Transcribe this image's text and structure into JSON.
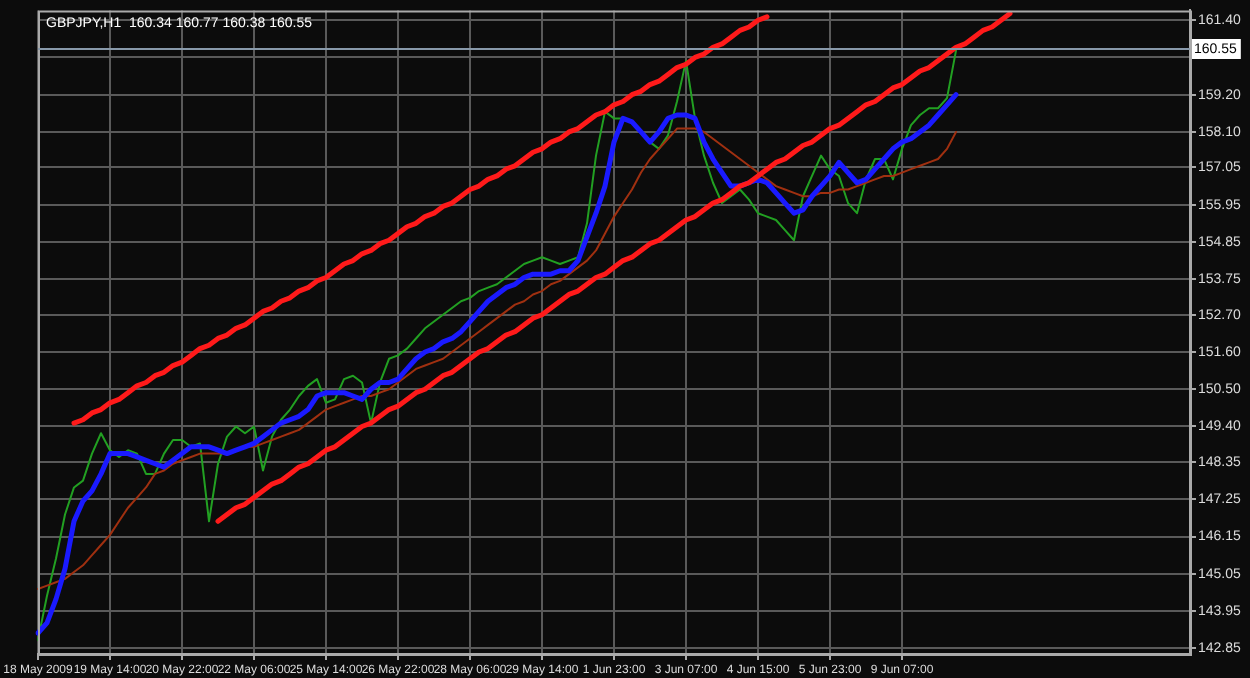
{
  "chart_data": {
    "type": "line",
    "title": "GBPJPY,H1  160.34 160.77 160.38 160.55",
    "categories": [
      "18 May 2009",
      null,
      null,
      null,
      null,
      null,
      null,
      null,
      "19 May 14:00",
      null,
      null,
      null,
      null,
      null,
      null,
      null,
      "20 May 22:00",
      null,
      null,
      null,
      null,
      null,
      null,
      null,
      "22 May 06:00",
      null,
      null,
      null,
      null,
      null,
      null,
      null,
      "25 May 14:00",
      null,
      null,
      null,
      null,
      null,
      null,
      null,
      "26 May 22:00",
      null,
      null,
      null,
      null,
      null,
      null,
      null,
      "28 May 06:00",
      null,
      null,
      null,
      null,
      null,
      null,
      null,
      "29 May 14:00",
      null,
      null,
      null,
      null,
      null,
      null,
      null,
      "1 Jun 23:00",
      null,
      null,
      null,
      null,
      null,
      null,
      null,
      "3 Jun 07:00",
      null,
      null,
      null,
      null,
      null,
      null,
      null,
      "4 Jun 15:00",
      null,
      null,
      null,
      null,
      null,
      null,
      null,
      "5 Jun 23:00",
      null,
      null,
      null,
      null,
      null,
      null,
      null,
      "9 Jun 07:00",
      null,
      null,
      null,
      null,
      null,
      null,
      null,
      null,
      null,
      null,
      null,
      null,
      null,
      null,
      null,
      null,
      null,
      null,
      null,
      null,
      null,
      null,
      null,
      null,
      null,
      null,
      null,
      null,
      null,
      null,
      null,
      null
    ],
    "ylim": [
      142.68,
      161.69
    ],
    "yticks": [
      {
        "value": 142.85,
        "label": "142.85"
      },
      {
        "value": 143.95,
        "label": "143.95"
      },
      {
        "value": 145.05,
        "label": "145.05"
      },
      {
        "value": 146.15,
        "label": "146.15"
      },
      {
        "value": 147.25,
        "label": "147.25"
      },
      {
        "value": 148.35,
        "label": "148.35"
      },
      {
        "value": 149.4,
        "label": "149.40"
      },
      {
        "value": 150.5,
        "label": "150.50"
      },
      {
        "value": 151.6,
        "label": "151.60"
      },
      {
        "value": 152.7,
        "label": "152.70"
      },
      {
        "value": 153.75,
        "label": "153.75"
      },
      {
        "value": 154.85,
        "label": "154.85"
      },
      {
        "value": 155.95,
        "label": "155.95"
      },
      {
        "value": 157.05,
        "label": "157.05"
      },
      {
        "value": 158.1,
        "label": "158.10"
      },
      {
        "value": 159.2,
        "label": "159.20"
      },
      {
        "value": 160.3,
        "label": null
      },
      {
        "value": 161.4,
        "label": "161.40"
      }
    ],
    "grid": true,
    "legend": false,
    "marker": "none",
    "line_style": "solid",
    "ref_lines": [
      {
        "axis": "y",
        "value": 160.55,
        "label": "160.55",
        "color": "#8899aa"
      }
    ],
    "series": [
      {
        "color": "#22a022",
        "values": [
          143.1,
          144.4,
          145.5,
          146.8,
          147.6,
          147.8,
          148.6,
          149.2,
          148.7,
          148.5,
          148.7,
          148.6,
          148.0,
          148.0,
          148.6,
          149.0,
          149.0,
          148.8,
          148.9,
          146.6,
          148.3,
          149.1,
          149.4,
          149.2,
          149.4,
          148.1,
          149.1,
          149.6,
          149.9,
          150.3,
          150.6,
          150.8,
          150.1,
          150.2,
          150.8,
          150.9,
          150.7,
          149.5,
          150.7,
          151.4,
          151.5,
          151.7,
          152.0,
          152.3,
          152.5,
          152.7,
          152.9,
          153.1,
          153.2,
          153.4,
          153.5,
          153.6,
          153.8,
          154.0,
          154.2,
          154.3,
          154.4,
          154.3,
          154.2,
          154.3,
          154.4,
          155.4,
          157.4,
          158.7,
          158.5,
          158.5,
          158.4,
          158.1,
          157.8,
          157.6,
          158.0,
          159.0,
          160.2,
          158.5,
          157.4,
          156.6,
          156.0,
          156.2,
          156.4,
          156.1,
          155.7,
          155.6,
          155.5,
          155.2,
          154.9,
          156.2,
          156.8,
          157.4,
          157.0,
          156.8,
          156.0,
          155.7,
          156.7,
          157.3,
          157.3,
          156.7,
          157.6,
          158.3,
          158.6,
          158.8,
          158.8,
          159.1,
          160.5,
          null,
          null,
          null,
          null,
          null,
          null,
          null,
          null,
          null,
          null,
          null,
          null,
          null,
          null,
          null,
          null,
          null,
          null,
          null,
          null,
          null,
          null,
          null,
          null,
          null,
          null
        ]
      },
      {
        "color": "#a03010",
        "values": [
          144.6,
          144.7,
          144.8,
          144.9,
          145.1,
          145.3,
          145.6,
          145.9,
          146.2,
          146.6,
          147.0,
          147.3,
          147.6,
          148.0,
          148.1,
          148.3,
          148.4,
          148.5,
          148.6,
          148.6,
          148.6,
          148.6,
          148.7,
          148.8,
          148.8,
          148.9,
          149.0,
          149.1,
          149.2,
          149.3,
          149.5,
          149.7,
          149.9,
          150.0,
          150.1,
          150.2,
          150.3,
          150.3,
          150.4,
          150.5,
          150.7,
          150.9,
          151.1,
          151.2,
          151.3,
          151.4,
          151.6,
          151.8,
          152.0,
          152.2,
          152.4,
          152.6,
          152.8,
          153.0,
          153.1,
          153.3,
          153.4,
          153.6,
          153.7,
          153.9,
          154.1,
          154.3,
          154.6,
          155.1,
          155.6,
          156.0,
          156.4,
          156.9,
          157.3,
          157.6,
          157.9,
          158.2,
          158.2,
          158.2,
          158.1,
          157.9,
          157.7,
          157.5,
          157.3,
          157.1,
          156.9,
          156.7,
          156.5,
          156.4,
          156.3,
          156.2,
          156.2,
          156.3,
          156.3,
          156.4,
          156.4,
          156.5,
          156.6,
          156.7,
          156.8,
          156.8,
          156.9,
          157.0,
          157.1,
          157.2,
          157.3,
          157.6,
          158.1,
          null,
          null,
          null,
          null,
          null,
          null,
          null,
          null,
          null,
          null,
          null,
          null,
          null,
          null,
          null,
          null,
          null,
          null,
          null,
          null,
          null,
          null,
          null,
          null,
          null,
          null
        ]
      },
      {
        "color": "#1a1aff",
        "values": [
          143.3,
          143.6,
          144.3,
          145.2,
          146.6,
          147.2,
          147.5,
          148.0,
          148.6,
          148.6,
          148.6,
          148.5,
          148.4,
          148.3,
          148.2,
          148.4,
          148.6,
          148.8,
          148.8,
          148.8,
          148.7,
          148.6,
          148.7,
          148.8,
          148.9,
          149.1,
          149.3,
          149.5,
          149.6,
          149.7,
          149.9,
          150.3,
          150.4,
          150.4,
          150.4,
          150.3,
          150.2,
          150.5,
          150.7,
          150.7,
          150.8,
          151.1,
          151.4,
          151.6,
          151.7,
          151.9,
          152.0,
          152.2,
          152.5,
          152.8,
          153.1,
          153.3,
          153.5,
          153.6,
          153.8,
          153.9,
          153.9,
          153.9,
          154.0,
          154.0,
          154.3,
          155.0,
          155.7,
          156.5,
          157.8,
          158.5,
          158.4,
          158.1,
          157.8,
          158.1,
          158.5,
          158.6,
          158.6,
          158.5,
          157.8,
          157.3,
          156.9,
          156.5,
          156.5,
          156.6,
          156.7,
          156.6,
          156.3,
          156.0,
          155.7,
          155.8,
          156.2,
          156.5,
          156.8,
          157.2,
          156.9,
          156.6,
          156.7,
          157.0,
          157.3,
          157.6,
          157.8,
          157.9,
          158.1,
          158.3,
          158.6,
          158.9,
          159.2,
          null,
          null,
          null,
          null,
          null,
          null,
          null,
          null,
          null,
          null,
          null,
          null,
          null,
          null,
          null,
          null,
          null,
          null,
          null,
          null,
          null,
          null,
          null,
          null,
          null,
          null
        ]
      },
      {
        "color": "#ff1a1a",
        "values": [
          null,
          null,
          null,
          null,
          149.5,
          149.6,
          149.8,
          149.9,
          150.1,
          150.2,
          150.4,
          150.6,
          150.7,
          150.9,
          151.0,
          151.2,
          151.3,
          151.5,
          151.7,
          151.8,
          152.0,
          152.1,
          152.3,
          152.4,
          152.6,
          152.8,
          152.9,
          153.1,
          153.2,
          153.4,
          153.5,
          153.7,
          153.8,
          154.0,
          154.2,
          154.3,
          154.5,
          154.6,
          154.8,
          154.9,
          155.1,
          155.3,
          155.4,
          155.6,
          155.7,
          155.9,
          156.0,
          156.2,
          156.4,
          156.5,
          156.7,
          156.8,
          157.0,
          157.1,
          157.3,
          157.5,
          157.6,
          157.8,
          157.9,
          158.1,
          158.2,
          158.4,
          158.6,
          158.7,
          158.9,
          159.0,
          159.2,
          159.3,
          159.5,
          159.6,
          159.8,
          160.0,
          160.1,
          160.3,
          160.4,
          160.6,
          160.7,
          160.9,
          161.1,
          161.2,
          161.4,
          161.5,
          null,
          null,
          null,
          null,
          null,
          null,
          null,
          null,
          null,
          null,
          null,
          null,
          null,
          null,
          null,
          null,
          null,
          null,
          null,
          null,
          null,
          null,
          null,
          null,
          null,
          null,
          null,
          null,
          null,
          null,
          null,
          null,
          null,
          null,
          null,
          null,
          null,
          null,
          null,
          null,
          null,
          null,
          null,
          null,
          null,
          null,
          null
        ]
      },
      {
        "color": "#ff1a1a",
        "values": [
          null,
          null,
          null,
          null,
          null,
          null,
          null,
          null,
          null,
          null,
          null,
          null,
          null,
          null,
          null,
          null,
          null,
          null,
          null,
          null,
          146.6,
          146.8,
          147.0,
          147.1,
          147.3,
          147.5,
          147.7,
          147.8,
          148.0,
          148.2,
          148.3,
          148.5,
          148.7,
          148.8,
          149.0,
          149.2,
          149.4,
          149.5,
          149.7,
          149.9,
          150.0,
          150.2,
          150.4,
          150.5,
          150.7,
          150.9,
          151.0,
          151.2,
          151.4,
          151.6,
          151.7,
          151.9,
          152.1,
          152.2,
          152.4,
          152.6,
          152.7,
          152.9,
          153.1,
          153.3,
          153.4,
          153.6,
          153.8,
          153.9,
          154.1,
          154.3,
          154.4,
          154.6,
          154.8,
          154.9,
          155.1,
          155.3,
          155.5,
          155.6,
          155.8,
          156.0,
          156.1,
          156.3,
          156.5,
          156.6,
          156.8,
          157.0,
          157.2,
          157.3,
          157.5,
          157.7,
          157.8,
          158.0,
          158.2,
          158.3,
          158.5,
          158.7,
          158.9,
          159.0,
          159.2,
          159.4,
          159.5,
          159.7,
          159.9,
          160.0,
          160.2,
          160.4,
          160.6,
          160.7,
          160.9,
          161.1,
          161.2,
          161.4,
          161.6,
          null,
          null,
          null,
          null,
          null,
          null,
          null,
          null,
          null,
          null,
          null,
          null,
          null,
          null,
          null,
          null,
          null,
          null,
          null,
          null
        ]
      }
    ]
  }
}
